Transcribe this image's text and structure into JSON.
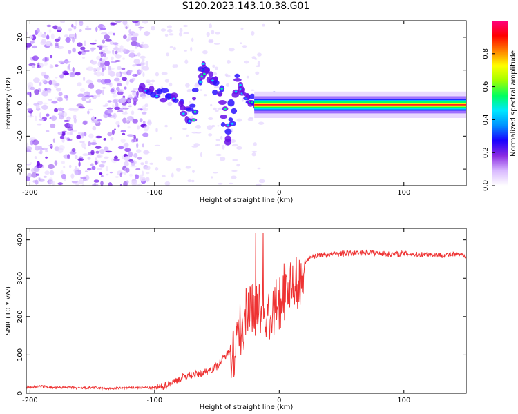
{
  "figure": {
    "title": "S120.2023.143.10.38.G01"
  },
  "chart_data": [
    {
      "type": "heatmap",
      "title": "S120.2023.143.10.38.G01",
      "xlabel": "Height of straight line (km)",
      "ylabel": "Frequency (Hz)",
      "xlim": [
        -203,
        150
      ],
      "ylim": [
        -25,
        25
      ],
      "x_ticks": [
        -200,
        -100,
        0,
        100
      ],
      "y_ticks": [
        -20,
        -10,
        0,
        10,
        20
      ],
      "grid": false,
      "colorbar": {
        "label": "Normalized spectral amplitude",
        "range": [
          0,
          1
        ],
        "ticks": [
          "0.0",
          "0.2",
          "0.4",
          "0.6",
          "0.8"
        ],
        "colormap": [
          "#ffffff",
          "#d8b8ff",
          "#8a2be2",
          "#1a00ff",
          "#0090ff",
          "#00e8ff",
          "#00ff60",
          "#a0ff00",
          "#ffff00",
          "#ff8000",
          "#ff0000",
          "#ff0080"
        ]
      },
      "ridge": {
        "description_points": [
          {
            "x": -110,
            "y": 4
          },
          {
            "x": -95,
            "y": 3
          },
          {
            "x": -80,
            "y": 0
          },
          {
            "x": -70,
            "y": -5
          },
          {
            "x": -62,
            "y": 11
          },
          {
            "x": -55,
            "y": 7
          },
          {
            "x": -48,
            "y": 4
          },
          {
            "x": -40,
            "y": -12
          },
          {
            "x": -35,
            "y": 7
          },
          {
            "x": -25,
            "y": 1
          },
          {
            "x": -18,
            "y": -0.5
          },
          {
            "x": -5,
            "y": 1.5
          },
          {
            "x": 0,
            "y": 1
          },
          {
            "x": 10,
            "y": 0
          },
          {
            "x": 30,
            "y": -0.5
          },
          {
            "x": 150,
            "y": -0.5
          }
        ]
      }
    },
    {
      "type": "line",
      "xlabel": "Height of straight line (km)",
      "ylabel": "SNR (10 * v/v)",
      "xlim": [
        -203,
        150
      ],
      "ylim": [
        0,
        430
      ],
      "x_ticks": [
        -200,
        -100,
        0,
        100
      ],
      "y_ticks": [
        0,
        100,
        200,
        300,
        400
      ],
      "grid": false,
      "color": "#ee2222",
      "series": [
        {
          "x": [
            -203,
            -190,
            -180,
            -170,
            -160,
            -150,
            -140,
            -130,
            -120,
            -110,
            -100,
            -95,
            -90,
            -85,
            -80,
            -75,
            -70,
            -65,
            -60,
            -55,
            -50,
            -45,
            -40,
            -35,
            -30,
            -25,
            -20,
            -15,
            -10,
            -5,
            0,
            5,
            10,
            15,
            20,
            25,
            30,
            40,
            50,
            60,
            70,
            80,
            90,
            100,
            110,
            120,
            130,
            140,
            150
          ],
          "y": [
            15,
            18,
            14,
            16,
            13,
            15,
            12,
            13,
            14,
            15,
            14,
            16,
            22,
            30,
            38,
            45,
            48,
            50,
            55,
            62,
            70,
            90,
            110,
            150,
            200,
            240,
            230,
            250,
            220,
            240,
            260,
            290,
            310,
            320,
            340,
            355,
            360,
            362,
            365,
            365,
            368,
            366,
            362,
            365,
            362,
            363,
            360,
            362,
            360
          ]
        }
      ]
    }
  ]
}
